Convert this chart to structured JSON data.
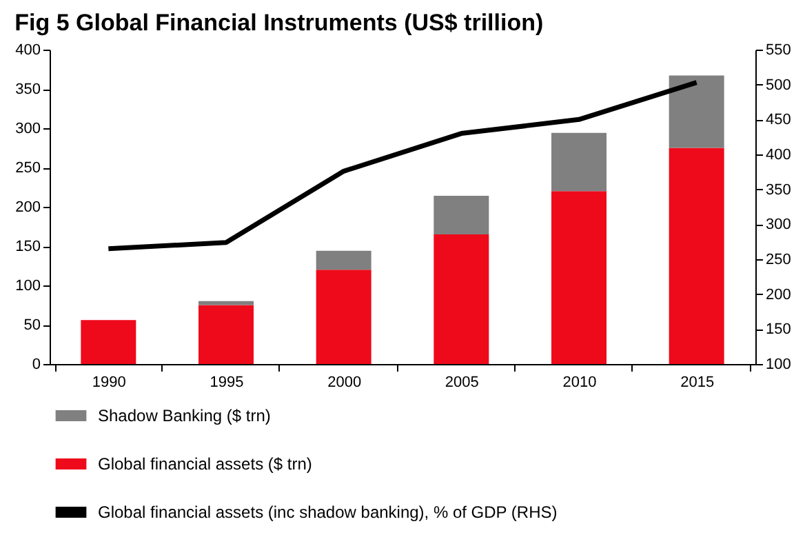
{
  "chart_data": {
    "type": "bar",
    "title": "Fig 5    Global Financial Instruments (US$ trillion)",
    "categories": [
      "1990",
      "1995",
      "2000",
      "2005",
      "2010",
      "2015"
    ],
    "stacked": true,
    "series": [
      {
        "name": "Global financial assets ($ trn)",
        "color": "#ee0a1a",
        "values": [
          56,
          75,
          120,
          165,
          220,
          275
        ]
      },
      {
        "name": "Shadow Banking ($ trn)",
        "color": "#808080",
        "values": [
          0,
          5,
          24,
          49,
          74,
          92
        ]
      },
      {
        "name": "Global financial assets (inc shadow banking), % of GDP (RHS)",
        "type": "line",
        "axis": "y2",
        "color": "#000000",
        "values": [
          265,
          274,
          376,
          430,
          450,
          503
        ]
      }
    ],
    "ylim": [
      0,
      400
    ],
    "yticks": [
      0,
      50,
      100,
      150,
      200,
      250,
      300,
      350,
      400
    ],
    "y2lim": [
      100,
      550
    ],
    "y2ticks": [
      100,
      150,
      200,
      250,
      300,
      350,
      400,
      450,
      500,
      550
    ],
    "grid": false,
    "legend": "bottom",
    "line_style": "solid",
    "marker": "none"
  }
}
